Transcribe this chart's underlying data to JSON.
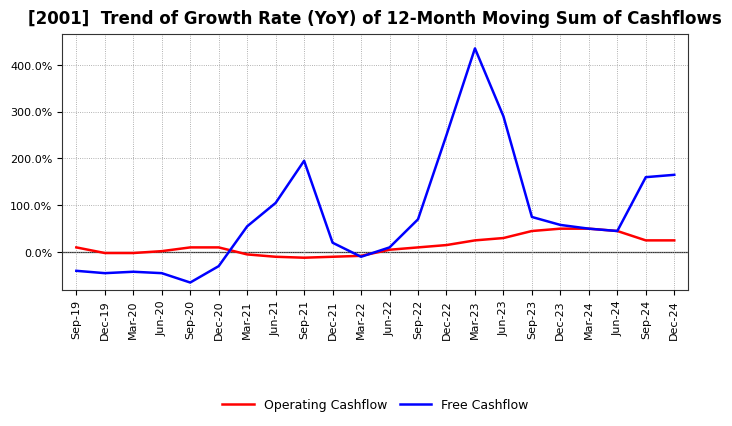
{
  "title": "[2001]  Trend of Growth Rate (YoY) of 12-Month Moving Sum of Cashflows",
  "x_labels": [
    "Sep-19",
    "Dec-19",
    "Mar-20",
    "Jun-20",
    "Sep-20",
    "Dec-20",
    "Mar-21",
    "Jun-21",
    "Sep-21",
    "Dec-21",
    "Mar-22",
    "Jun-22",
    "Sep-22",
    "Dec-22",
    "Mar-23",
    "Jun-23",
    "Sep-23",
    "Dec-23",
    "Mar-24",
    "Jun-24",
    "Sep-24",
    "Dec-24"
  ],
  "operating_cashflow": [
    0.1,
    -0.02,
    -0.02,
    0.02,
    0.1,
    0.1,
    -0.05,
    -0.1,
    -0.12,
    -0.1,
    -0.08,
    0.05,
    0.1,
    0.15,
    0.25,
    0.3,
    0.45,
    0.5,
    0.5,
    0.45,
    0.25,
    0.25
  ],
  "free_cashflow": [
    -0.4,
    -0.45,
    -0.42,
    -0.45,
    -0.65,
    -0.3,
    0.55,
    1.05,
    1.95,
    0.2,
    -0.1,
    0.1,
    0.7,
    2.5,
    4.35,
    2.9,
    0.75,
    0.58,
    0.5,
    0.45,
    1.6,
    1.65
  ],
  "operating_color": "#ff0000",
  "free_color": "#0000ff",
  "background_color": "#ffffff",
  "grid_color": "#999999",
  "ylim_min": -0.8,
  "ylim_max": 4.65,
  "ytick_vals": [
    0.0,
    1.0,
    2.0,
    3.0,
    4.0
  ],
  "ytick_labels": [
    "0.0%",
    "100.0%",
    "200.0%",
    "300.0%",
    "400.0%"
  ],
  "title_fontsize": 12,
  "tick_fontsize": 8,
  "legend_fontsize": 9
}
